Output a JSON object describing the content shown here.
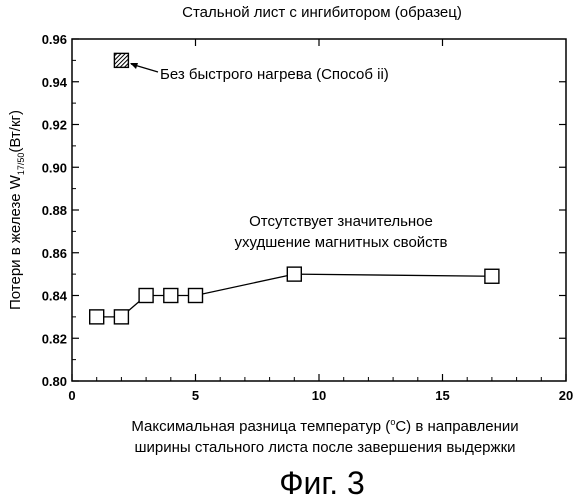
{
  "chart_data": {
    "type": "line",
    "title": "Стальной лист с ингибитором (образец)",
    "ylabel_prefix": "Потери в железе W",
    "ylabel_sub": "17/50",
    "ylabel_suffix": "(Вт/кг)",
    "xlabel_line1_prefix": "Максимальная разница температур (",
    "xlabel_line1_sup": "о",
    "xlabel_line1_suffix": "C) в направлении",
    "xlabel_line2": "ширины стального листа после завершения выдержки",
    "xlim": [
      0,
      20
    ],
    "ylim": [
      0.8,
      0.96
    ],
    "x_ticks": [
      "0",
      "5",
      "10",
      "15",
      "20"
    ],
    "y_ticks": [
      "0.80",
      "0.82",
      "0.84",
      "0.86",
      "0.88",
      "0.90",
      "0.92",
      "0.94",
      "0.96"
    ],
    "series": [
      {
        "marker": "open-square",
        "x": [
          1,
          2,
          3,
          4,
          5,
          9,
          17
        ],
        "y": [
          0.83,
          0.83,
          0.84,
          0.84,
          0.84,
          0.85,
          0.849
        ]
      }
    ],
    "reference_point": {
      "marker": "hatched-square",
      "x": 2,
      "y": 0.95
    },
    "annotations": {
      "without_rapid_heating": "Без быстрого нагрева (Способ ii)",
      "no_degradation_line1": "Отсутствует значительное",
      "no_degradation_line2": "ухудшение магнитных свойств"
    },
    "figure_label": "Фиг. 3"
  }
}
